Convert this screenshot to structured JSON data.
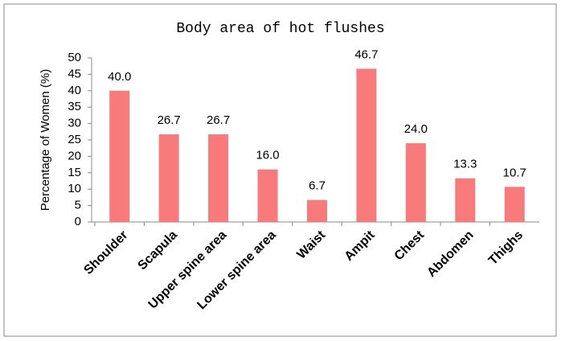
{
  "chart_data": {
    "type": "bar",
    "title": "Body area of hot flushes",
    "y_label": "Percentage of Women (%)",
    "categories": [
      "Shoulder",
      "Scapula",
      "Upper spine area",
      "Lower spine area",
      "Waist",
      "Ampit",
      "Chest",
      "Abdomen",
      "Thighs"
    ],
    "values": [
      40.0,
      26.7,
      26.7,
      16.0,
      6.7,
      46.7,
      24.0,
      13.3,
      10.7
    ],
    "value_labels": [
      "40.0",
      "26.7",
      "26.7",
      "16.0",
      "6.7",
      "46.7",
      "24.0",
      "13.3",
      "10.7"
    ],
    "color": "#f87a7a",
    "ylim": [
      0,
      50
    ],
    "yticks": [
      0,
      5,
      10,
      15,
      20,
      25,
      30,
      35,
      40,
      45,
      50
    ],
    "grid": false
  }
}
